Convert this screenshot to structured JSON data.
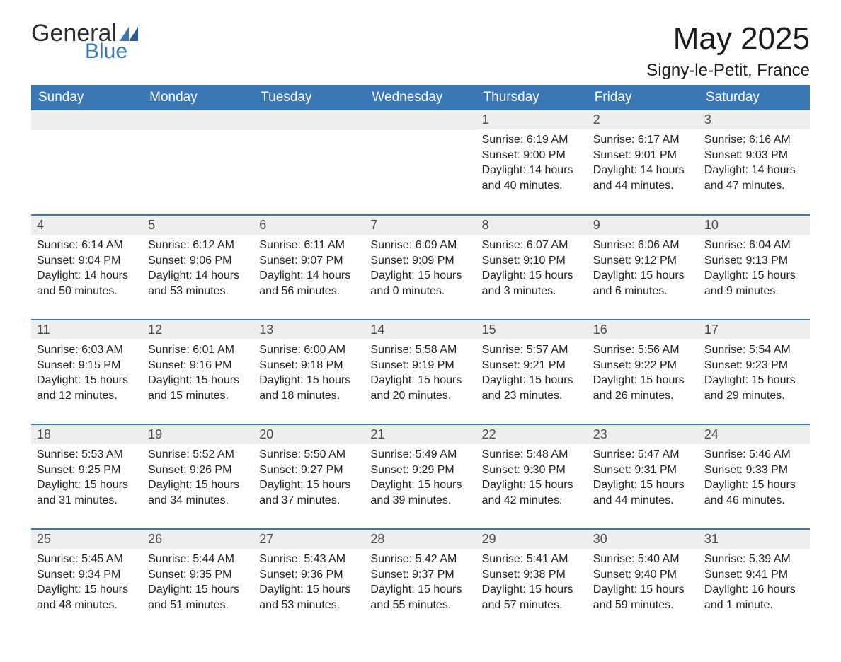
{
  "brand": {
    "word1": "General",
    "word2": "Blue",
    "accent_color": "#3a77b5"
  },
  "title": "May 2025",
  "location": "Signy-le-Petit, France",
  "colors": {
    "header_bg": "#3a77b5",
    "header_fg": "#ffffff",
    "row_divider": "#3a77b5",
    "daynum_bg": "#eeeeee",
    "daynum_fg": "#4a4a4a",
    "body_fg": "#222222",
    "page_bg": "#ffffff"
  },
  "typography": {
    "title_fontsize": 44,
    "location_fontsize": 24,
    "weekday_fontsize": 19,
    "daynum_fontsize": 18,
    "body_fontsize": 16
  },
  "weekdays": [
    "Sunday",
    "Monday",
    "Tuesday",
    "Wednesday",
    "Thursday",
    "Friday",
    "Saturday"
  ],
  "weeks": [
    [
      null,
      null,
      null,
      null,
      {
        "n": "1",
        "sr": "Sunrise: 6:19 AM",
        "ss": "Sunset: 9:00 PM",
        "d1": "Daylight: 14 hours",
        "d2": "and 40 minutes."
      },
      {
        "n": "2",
        "sr": "Sunrise: 6:17 AM",
        "ss": "Sunset: 9:01 PM",
        "d1": "Daylight: 14 hours",
        "d2": "and 44 minutes."
      },
      {
        "n": "3",
        "sr": "Sunrise: 6:16 AM",
        "ss": "Sunset: 9:03 PM",
        "d1": "Daylight: 14 hours",
        "d2": "and 47 minutes."
      }
    ],
    [
      {
        "n": "4",
        "sr": "Sunrise: 6:14 AM",
        "ss": "Sunset: 9:04 PM",
        "d1": "Daylight: 14 hours",
        "d2": "and 50 minutes."
      },
      {
        "n": "5",
        "sr": "Sunrise: 6:12 AM",
        "ss": "Sunset: 9:06 PM",
        "d1": "Daylight: 14 hours",
        "d2": "and 53 minutes."
      },
      {
        "n": "6",
        "sr": "Sunrise: 6:11 AM",
        "ss": "Sunset: 9:07 PM",
        "d1": "Daylight: 14 hours",
        "d2": "and 56 minutes."
      },
      {
        "n": "7",
        "sr": "Sunrise: 6:09 AM",
        "ss": "Sunset: 9:09 PM",
        "d1": "Daylight: 15 hours",
        "d2": "and 0 minutes."
      },
      {
        "n": "8",
        "sr": "Sunrise: 6:07 AM",
        "ss": "Sunset: 9:10 PM",
        "d1": "Daylight: 15 hours",
        "d2": "and 3 minutes."
      },
      {
        "n": "9",
        "sr": "Sunrise: 6:06 AM",
        "ss": "Sunset: 9:12 PM",
        "d1": "Daylight: 15 hours",
        "d2": "and 6 minutes."
      },
      {
        "n": "10",
        "sr": "Sunrise: 6:04 AM",
        "ss": "Sunset: 9:13 PM",
        "d1": "Daylight: 15 hours",
        "d2": "and 9 minutes."
      }
    ],
    [
      {
        "n": "11",
        "sr": "Sunrise: 6:03 AM",
        "ss": "Sunset: 9:15 PM",
        "d1": "Daylight: 15 hours",
        "d2": "and 12 minutes."
      },
      {
        "n": "12",
        "sr": "Sunrise: 6:01 AM",
        "ss": "Sunset: 9:16 PM",
        "d1": "Daylight: 15 hours",
        "d2": "and 15 minutes."
      },
      {
        "n": "13",
        "sr": "Sunrise: 6:00 AM",
        "ss": "Sunset: 9:18 PM",
        "d1": "Daylight: 15 hours",
        "d2": "and 18 minutes."
      },
      {
        "n": "14",
        "sr": "Sunrise: 5:58 AM",
        "ss": "Sunset: 9:19 PM",
        "d1": "Daylight: 15 hours",
        "d2": "and 20 minutes."
      },
      {
        "n": "15",
        "sr": "Sunrise: 5:57 AM",
        "ss": "Sunset: 9:21 PM",
        "d1": "Daylight: 15 hours",
        "d2": "and 23 minutes."
      },
      {
        "n": "16",
        "sr": "Sunrise: 5:56 AM",
        "ss": "Sunset: 9:22 PM",
        "d1": "Daylight: 15 hours",
        "d2": "and 26 minutes."
      },
      {
        "n": "17",
        "sr": "Sunrise: 5:54 AM",
        "ss": "Sunset: 9:23 PM",
        "d1": "Daylight: 15 hours",
        "d2": "and 29 minutes."
      }
    ],
    [
      {
        "n": "18",
        "sr": "Sunrise: 5:53 AM",
        "ss": "Sunset: 9:25 PM",
        "d1": "Daylight: 15 hours",
        "d2": "and 31 minutes."
      },
      {
        "n": "19",
        "sr": "Sunrise: 5:52 AM",
        "ss": "Sunset: 9:26 PM",
        "d1": "Daylight: 15 hours",
        "d2": "and 34 minutes."
      },
      {
        "n": "20",
        "sr": "Sunrise: 5:50 AM",
        "ss": "Sunset: 9:27 PM",
        "d1": "Daylight: 15 hours",
        "d2": "and 37 minutes."
      },
      {
        "n": "21",
        "sr": "Sunrise: 5:49 AM",
        "ss": "Sunset: 9:29 PM",
        "d1": "Daylight: 15 hours",
        "d2": "and 39 minutes."
      },
      {
        "n": "22",
        "sr": "Sunrise: 5:48 AM",
        "ss": "Sunset: 9:30 PM",
        "d1": "Daylight: 15 hours",
        "d2": "and 42 minutes."
      },
      {
        "n": "23",
        "sr": "Sunrise: 5:47 AM",
        "ss": "Sunset: 9:31 PM",
        "d1": "Daylight: 15 hours",
        "d2": "and 44 minutes."
      },
      {
        "n": "24",
        "sr": "Sunrise: 5:46 AM",
        "ss": "Sunset: 9:33 PM",
        "d1": "Daylight: 15 hours",
        "d2": "and 46 minutes."
      }
    ],
    [
      {
        "n": "25",
        "sr": "Sunrise: 5:45 AM",
        "ss": "Sunset: 9:34 PM",
        "d1": "Daylight: 15 hours",
        "d2": "and 48 minutes."
      },
      {
        "n": "26",
        "sr": "Sunrise: 5:44 AM",
        "ss": "Sunset: 9:35 PM",
        "d1": "Daylight: 15 hours",
        "d2": "and 51 minutes."
      },
      {
        "n": "27",
        "sr": "Sunrise: 5:43 AM",
        "ss": "Sunset: 9:36 PM",
        "d1": "Daylight: 15 hours",
        "d2": "and 53 minutes."
      },
      {
        "n": "28",
        "sr": "Sunrise: 5:42 AM",
        "ss": "Sunset: 9:37 PM",
        "d1": "Daylight: 15 hours",
        "d2": "and 55 minutes."
      },
      {
        "n": "29",
        "sr": "Sunrise: 5:41 AM",
        "ss": "Sunset: 9:38 PM",
        "d1": "Daylight: 15 hours",
        "d2": "and 57 minutes."
      },
      {
        "n": "30",
        "sr": "Sunrise: 5:40 AM",
        "ss": "Sunset: 9:40 PM",
        "d1": "Daylight: 15 hours",
        "d2": "and 59 minutes."
      },
      {
        "n": "31",
        "sr": "Sunrise: 5:39 AM",
        "ss": "Sunset: 9:41 PM",
        "d1": "Daylight: 16 hours",
        "d2": "and 1 minute."
      }
    ]
  ]
}
